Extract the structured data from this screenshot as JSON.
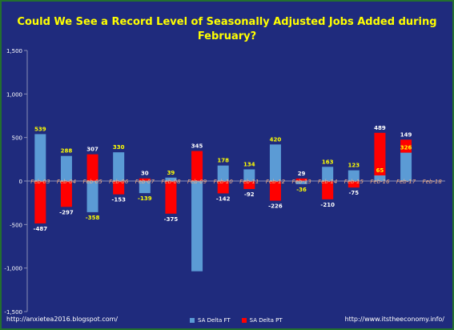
{
  "chart_data": {
    "type": "bar",
    "stacked": true,
    "title": [
      "Could We See a Record Level of Seasonally Adjusted Jobs Added during",
      "February?"
    ],
    "categories": [
      "Feb-03",
      "Feb-04",
      "Feb-05",
      "Feb-06",
      "Feb-07",
      "Feb-08",
      "Feb-09",
      "Feb-10",
      "Feb-11",
      "Feb-12",
      "Feb-13",
      "Feb-14",
      "Feb-15",
      "Feb-16",
      "Feb-17",
      "Feb-18"
    ],
    "series": [
      {
        "name": "SA Delta FT",
        "color": "#5b9bd5",
        "values": [
          539,
          288,
          -358,
          330,
          -139,
          39,
          -1037,
          178,
          134,
          420,
          -36,
          163,
          123,
          65,
          326,
          null
        ],
        "labels": [
          "539",
          "288",
          "-358",
          "330",
          "-139",
          "39",
          "",
          "178",
          "134",
          "420",
          "-36",
          "163",
          "123",
          "65",
          "326",
          ""
        ]
      },
      {
        "name": "SA Delta PT",
        "color": "#ff0000",
        "values": [
          -487,
          -297,
          307,
          -153,
          30,
          -375,
          345,
          -142,
          -92,
          -226,
          29,
          -210,
          -75,
          489,
          149,
          null
        ],
        "labels": [
          "-487",
          "-297",
          "307",
          "-153",
          "30",
          "-375",
          "345",
          "-142",
          "-92",
          "-226",
          "29",
          "-210",
          "-75",
          "489",
          "149",
          ""
        ]
      }
    ],
    "ylim": [
      -1500,
      1500
    ],
    "yticks": [
      -1500,
      -1000,
      -500,
      0,
      500,
      1000,
      1500
    ],
    "ytick_labels": [
      "-1,500",
      "-1,000",
      "-500",
      "0",
      "500",
      "1,000",
      "1,500"
    ],
    "grid": false,
    "legend": "bottom"
  },
  "footer": {
    "left": "http://anxietea2016.blogspot.com/",
    "right": "http://www.itstheeconomy.info/"
  },
  "colors": {
    "background": "#1f2b7d",
    "title": "#ffff00",
    "label_yellow": "#ffff00",
    "label_white": "#ffffff",
    "category_label": "#f4b183"
  }
}
